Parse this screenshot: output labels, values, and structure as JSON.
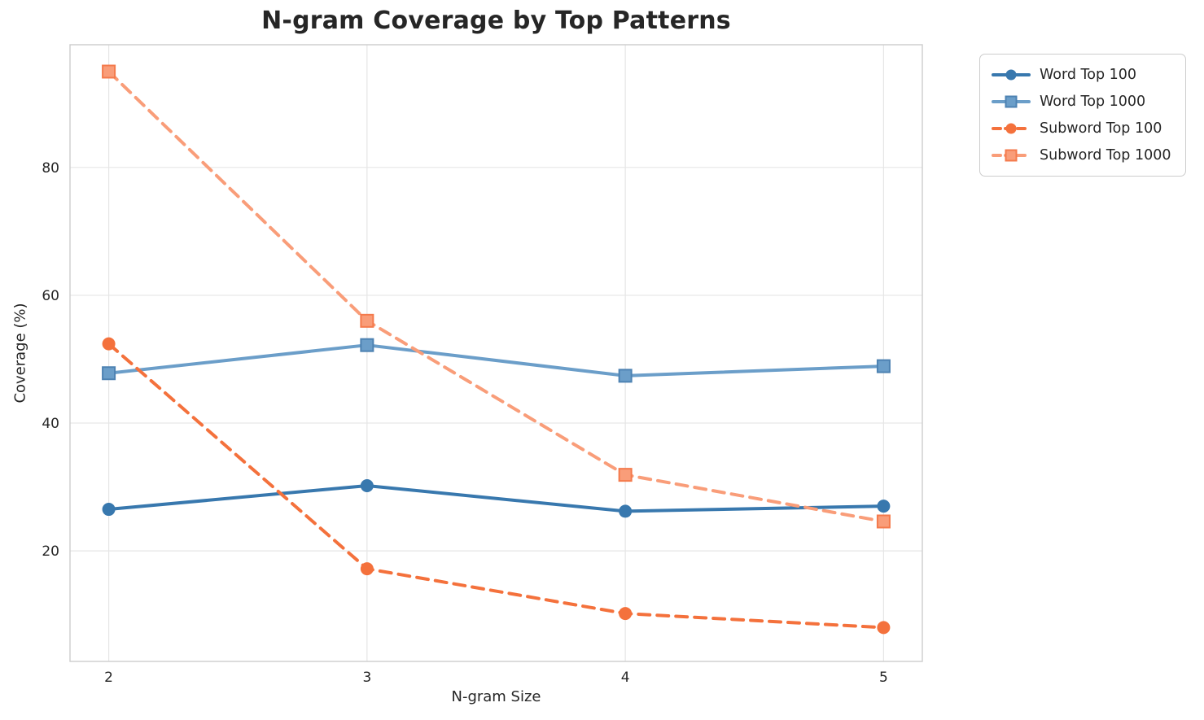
{
  "chart_data": {
    "type": "line",
    "title": "N-gram Coverage by Top Patterns",
    "xlabel": "N-gram Size",
    "ylabel": "Coverage (%)",
    "x": [
      2,
      3,
      4,
      5
    ],
    "xticks": [
      "2",
      "3",
      "4",
      "5"
    ],
    "yticks": [
      20,
      40,
      60,
      80
    ],
    "xlim": [
      1.85,
      5.15
    ],
    "ylim": [
      2.7,
      99.2
    ],
    "grid": true,
    "legend_position": "outside-upper-right",
    "series": [
      {
        "name": "Word Top 100",
        "values": [
          26.5,
          30.2,
          26.2,
          27.0
        ],
        "color": "#3878ae",
        "marker": "circle",
        "marker_edge": "#3878ae",
        "line_style": "solid"
      },
      {
        "name": "Word Top 1000",
        "values": [
          47.8,
          52.2,
          47.4,
          48.9
        ],
        "color": "#6b9ec9",
        "marker": "square",
        "marker_edge": "#4d82b2",
        "line_style": "solid"
      },
      {
        "name": "Subword Top 100",
        "values": [
          52.4,
          17.2,
          10.2,
          8.0
        ],
        "color": "#f4713c",
        "marker": "circle",
        "marker_edge": "#f4713c",
        "line_style": "dashed"
      },
      {
        "name": "Subword Top 1000",
        "values": [
          95.0,
          56.0,
          31.9,
          24.6
        ],
        "color": "#f99d79",
        "marker": "square",
        "marker_edge": "#f47a4c",
        "line_style": "dashed"
      }
    ],
    "grid_color": "#e6e6e6",
    "spine_color": "#cccccc",
    "text_color": "#262626",
    "tick_font_size": 17
  }
}
